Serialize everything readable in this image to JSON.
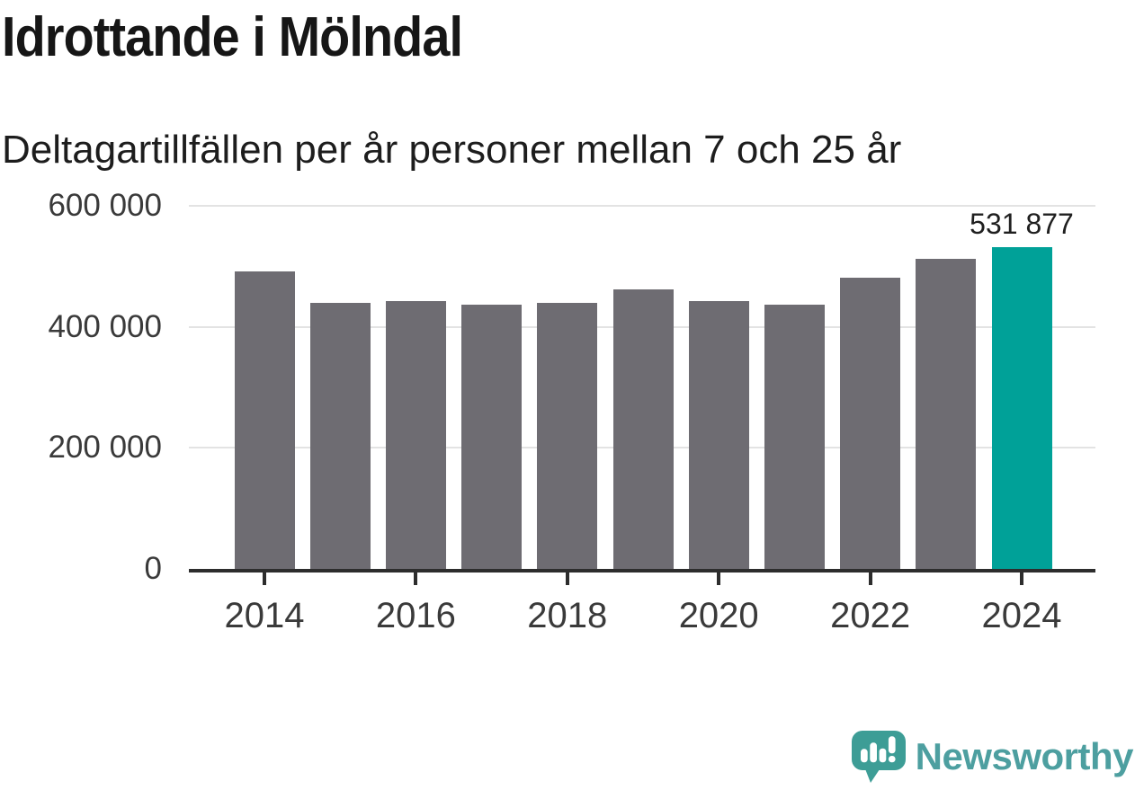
{
  "title": "Idrottande i Mölndal",
  "subtitle": "Deltagartillfällen per år personer mellan 7 och 25 år",
  "chart_data": {
    "type": "bar",
    "title": "Idrottande i Mölndal",
    "subtitle": "Deltagartillfällen per år personer mellan 7 och 25 år",
    "categories": [
      2014,
      2015,
      2016,
      2017,
      2018,
      2019,
      2020,
      2021,
      2022,
      2023,
      2024
    ],
    "values": [
      492000,
      439000,
      442000,
      437000,
      440000,
      462000,
      443000,
      437000,
      481000,
      512000,
      531877
    ],
    "highlight_index": 10,
    "data_label": {
      "index": 10,
      "text": "531 877"
    },
    "xlabel": "",
    "ylabel": "",
    "ylim": [
      0,
      600000
    ],
    "yticks": [
      0,
      200000,
      400000,
      600000
    ],
    "ytick_labels": [
      "0",
      "200 000",
      "400 000",
      "600 000"
    ],
    "xtick_labels": [
      "2014",
      "2016",
      "2018",
      "2020",
      "2022",
      "2024"
    ],
    "grid": "horizontal-behind-bars",
    "legend": "none",
    "bar_color": "#6e6c72",
    "highlight_color": "#00a198",
    "grid_color": "#e3e3e3",
    "axis_color": "#2d2d2d",
    "label_color": "#3a3a3a"
  },
  "branding": {
    "logo_text": "Newsworthy",
    "logo_text_color": "#4d9fa0",
    "logo_icon_color": "#3d9d96",
    "logo_icon_name": "newsworthy-speech-bubble-chart-icon"
  }
}
